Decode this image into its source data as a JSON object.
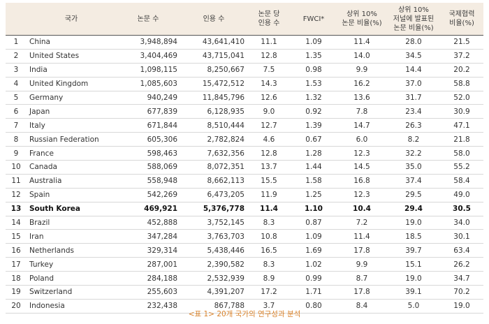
{
  "headers": {
    "rank": "",
    "country": "국가",
    "papers": "논문 수",
    "citations": "인용 수",
    "cites_per_paper": [
      "논문 당",
      "인용 수"
    ],
    "fwci": "FWCI*",
    "top10_papers": [
      "상위 10%",
      "논문 비율(%)"
    ],
    "top10_journals": [
      "상위 10%",
      "저널에 발표된",
      "논문 비율(%)"
    ],
    "intl_collab": [
      "국제협력",
      "비율(%)"
    ]
  },
  "rows": [
    {
      "rank": "1",
      "country": "China",
      "papers": "3,948,894",
      "citations": "43,641,410",
      "cpp": "11.1",
      "fwci": "1.09",
      "top10": "11.4",
      "topj": "28.0",
      "intl": "21.5"
    },
    {
      "rank": "2",
      "country": "United States",
      "papers": "3,404,469",
      "citations": "43,715,041",
      "cpp": "12.8",
      "fwci": "1.35",
      "top10": "14.0",
      "topj": "34.5",
      "intl": "37.2"
    },
    {
      "rank": "3",
      "country": "India",
      "papers": "1,098,115",
      "citations": "8,250,667",
      "cpp": "7.5",
      "fwci": "0.98",
      "top10": "9.9",
      "topj": "14.4",
      "intl": "20.2"
    },
    {
      "rank": "4",
      "country": "United Kingdom",
      "papers": "1,085,603",
      "citations": "15,472,512",
      "cpp": "14.3",
      "fwci": "1.53",
      "top10": "16.2",
      "topj": "37.0",
      "intl": "58.8"
    },
    {
      "rank": "5",
      "country": "Germany",
      "papers": "940,249",
      "citations": "11,845,796",
      "cpp": "12.6",
      "fwci": "1.32",
      "top10": "13.6",
      "topj": "31.7",
      "intl": "52.0"
    },
    {
      "rank": "6",
      "country": "Japan",
      "papers": "677,839",
      "citations": "6,128,935",
      "cpp": "9.0",
      "fwci": "0.92",
      "top10": "7.8",
      "topj": "23.4",
      "intl": "30.9"
    },
    {
      "rank": "7",
      "country": "Italy",
      "papers": "671,844",
      "citations": "8,510,444",
      "cpp": "12.7",
      "fwci": "1.39",
      "top10": "14.7",
      "topj": "26.3",
      "intl": "47.1"
    },
    {
      "rank": "8",
      "country": "Russian Federation",
      "papers": "605,306",
      "citations": "2,782,824",
      "cpp": "4.6",
      "fwci": "0.67",
      "top10": "6.0",
      "topj": "8.2",
      "intl": "21.8"
    },
    {
      "rank": "9",
      "country": "France",
      "papers": "598,463",
      "citations": "7,632,356",
      "cpp": "12.8",
      "fwci": "1.28",
      "top10": "12.3",
      "topj": "32.2",
      "intl": "58.0"
    },
    {
      "rank": "10",
      "country": "Canada",
      "papers": "588,069",
      "citations": "8,072,351",
      "cpp": "13.7",
      "fwci": "1.44",
      "top10": "14.5",
      "topj": "35.0",
      "intl": "55.2"
    },
    {
      "rank": "11",
      "country": "Australia",
      "papers": "558,948",
      "citations": "8,662,113",
      "cpp": "15.5",
      "fwci": "1.58",
      "top10": "16.8",
      "topj": "37.4",
      "intl": "58.4"
    },
    {
      "rank": "12",
      "country": "Spain",
      "papers": "542,269",
      "citations": "6,473,205",
      "cpp": "11.9",
      "fwci": "1.25",
      "top10": "12.3",
      "topj": "29.5",
      "intl": "49.0"
    },
    {
      "rank": "13",
      "country": "South Korea",
      "papers": "469,921",
      "citations": "5,376,778",
      "cpp": "11.4",
      "fwci": "1.10",
      "top10": "10.4",
      "topj": "29.4",
      "intl": "30.5",
      "highlight": true
    },
    {
      "rank": "14",
      "country": "Brazil",
      "papers": "452,888",
      "citations": "3,752,145",
      "cpp": "8.3",
      "fwci": "0.87",
      "top10": "7.2",
      "topj": "19.0",
      "intl": "34.0"
    },
    {
      "rank": "15",
      "country": "Iran",
      "papers": "347,284",
      "citations": "3,763,703",
      "cpp": "10.8",
      "fwci": "1.09",
      "top10": "11.4",
      "topj": "18.5",
      "intl": "30.1"
    },
    {
      "rank": "16",
      "country": "Netherlands",
      "papers": "329,314",
      "citations": "5,438,446",
      "cpp": "16.5",
      "fwci": "1.69",
      "top10": "17.8",
      "topj": "39.7",
      "intl": "63.4"
    },
    {
      "rank": "17",
      "country": "Turkey",
      "papers": "287,001",
      "citations": "2,390,582",
      "cpp": "8.3",
      "fwci": "1.02",
      "top10": "9.9",
      "topj": "15.1",
      "intl": "26.2"
    },
    {
      "rank": "18",
      "country": "Poland",
      "papers": "284,188",
      "citations": "2,532,939",
      "cpp": "8.9",
      "fwci": "0.99",
      "top10": "8.7",
      "topj": "19.0",
      "intl": "34.7"
    },
    {
      "rank": "19",
      "country": "Switzerland",
      "papers": "255,603",
      "citations": "4,391,207",
      "cpp": "17.2",
      "fwci": "1.71",
      "top10": "17.8",
      "topj": "39.1",
      "intl": "70.2"
    },
    {
      "rank": "20",
      "country": "Indonesia",
      "papers": "232,438",
      "citations": "867,788",
      "cpp": "3.7",
      "fwci": "0.80",
      "top10": "8.4",
      "topj": "5.0",
      "intl": "19.0"
    }
  ],
  "caption": "<표 1> 20개 국가의 연구성과 분석"
}
